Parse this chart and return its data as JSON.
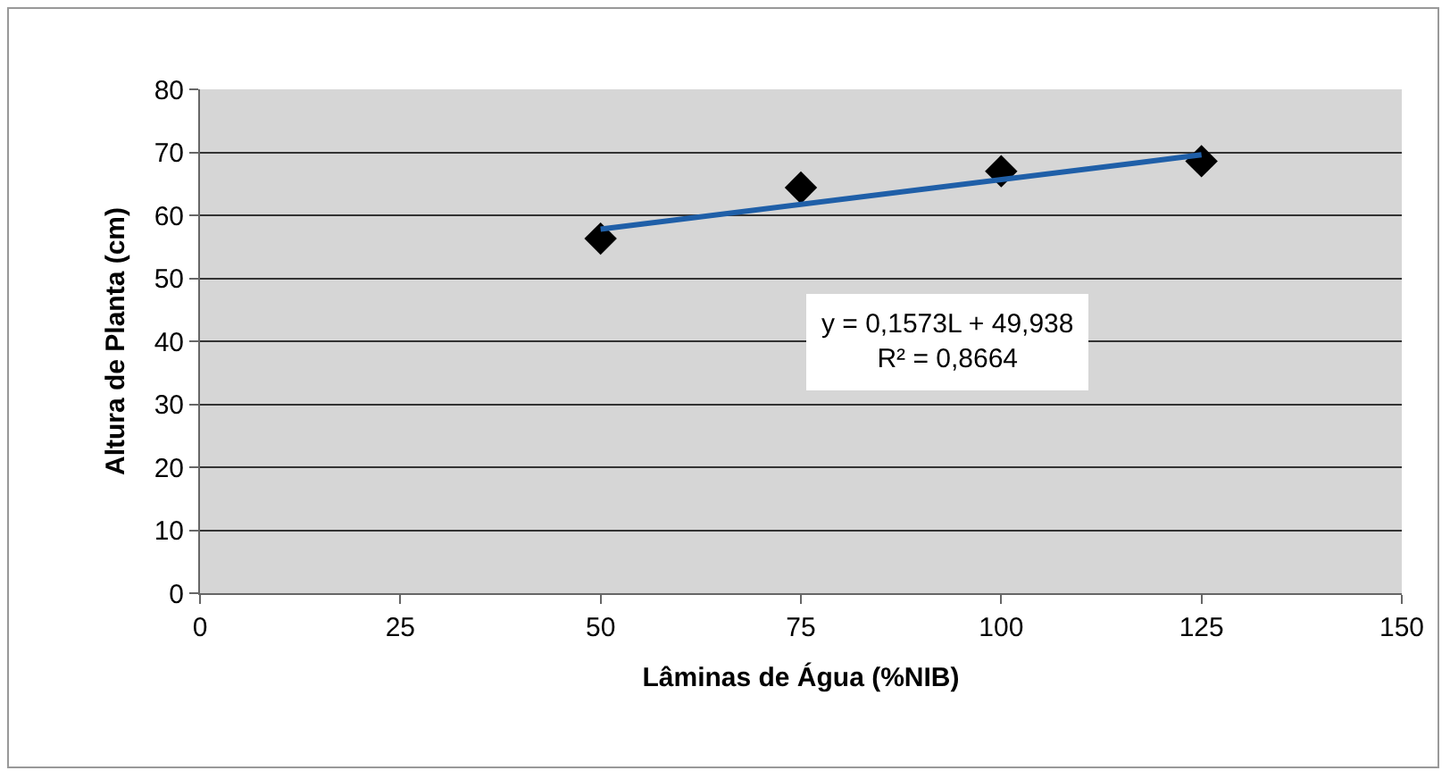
{
  "chart_data": {
    "type": "scatter",
    "xlabel": "Lâminas de Água (%NIB)",
    "ylabel": "Altura de Planta (cm)",
    "series": [
      {
        "color": "#000000",
        "marker": "diamond",
        "x": [
          50,
          75,
          100,
          125
        ],
        "values": [
          56.3,
          64.4,
          67,
          68.6
        ]
      },
      {
        "type": "line",
        "color": "#1f5fa8",
        "marker": "none",
        "line_style": "solid",
        "x": [
          50,
          125
        ],
        "values": [
          57.8,
          69.6
        ]
      }
    ],
    "xlim": [
      0,
      150
    ],
    "xticks": [
      0,
      25,
      50,
      75,
      100,
      125,
      150
    ],
    "ylim": [
      0,
      80
    ],
    "yticks": [
      0,
      10,
      20,
      30,
      40,
      50,
      60,
      70,
      80
    ],
    "grid": "y",
    "annotations": [
      "y = 0,1573L + 49,938\nR² = 0,8664"
    ]
  }
}
